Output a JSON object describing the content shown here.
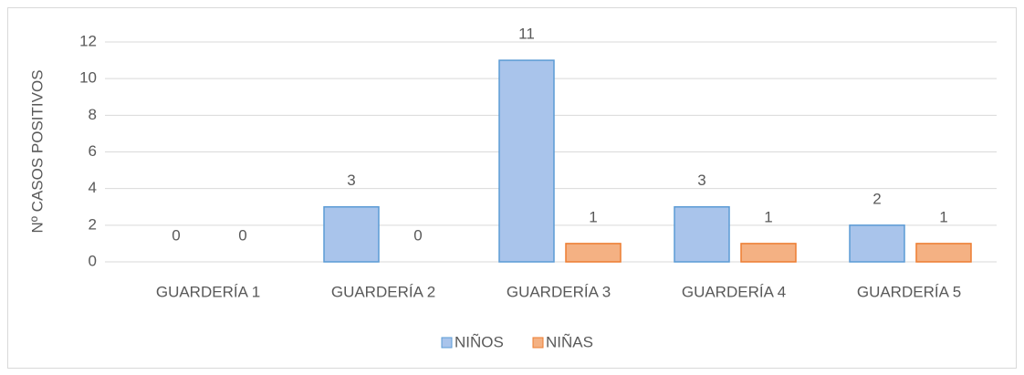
{
  "chart_data": {
    "type": "bar",
    "y_label": "Nº CASOS POSITIVOS",
    "categories": [
      "GUARDERÍA 1",
      "GUARDERÍA 2",
      "GUARDERÍA 3",
      "GUARDERÍA 4",
      "GUARDERÍA 5"
    ],
    "series": [
      {
        "name": "NIÑOS",
        "color": "#a9c4eb",
        "values": [
          0,
          3,
          11,
          3,
          2
        ]
      },
      {
        "name": "NIÑAS",
        "color": "#f4b183",
        "values": [
          0,
          0,
          1,
          1,
          1
        ]
      }
    ],
    "ylim": [
      0,
      12
    ],
    "yticks": [
      0,
      2,
      4,
      6,
      8,
      10,
      12
    ],
    "grid": true,
    "legend": "bottom"
  }
}
